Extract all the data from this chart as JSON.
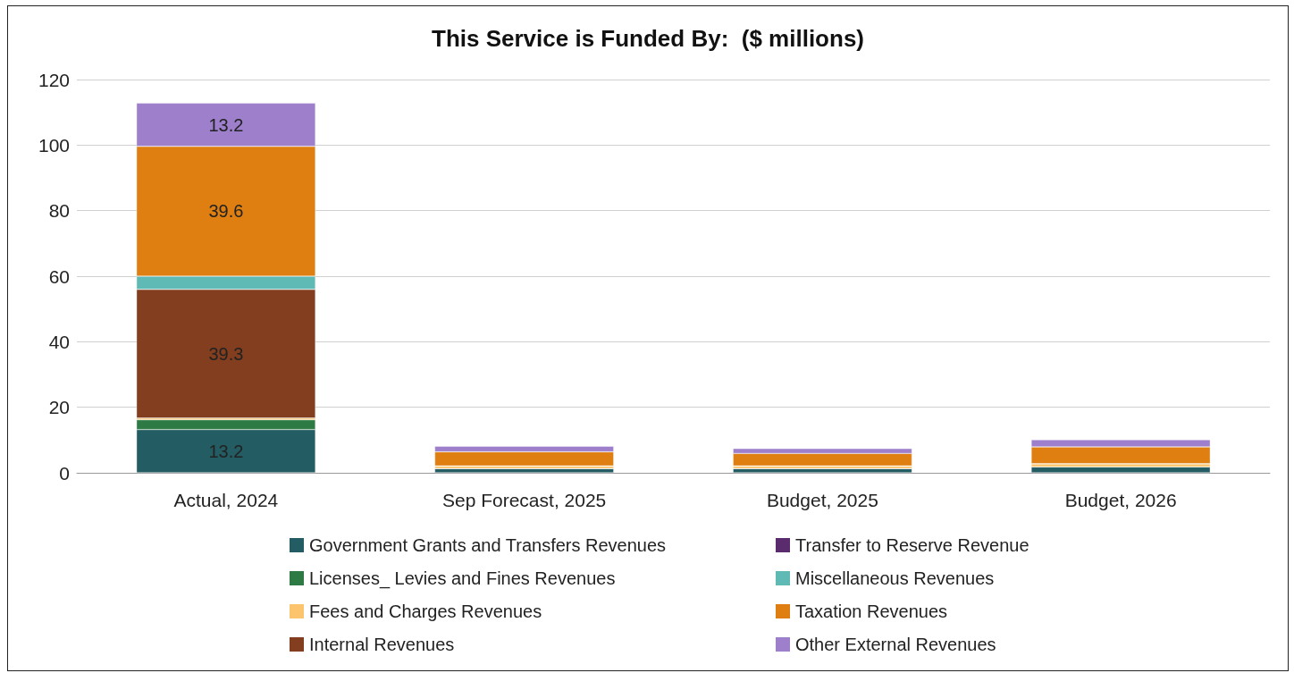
{
  "chart_data": {
    "type": "bar",
    "title": "This Service is Funded By:  ($ millions)",
    "categories": [
      "Actual, 2024",
      "Sep Forecast, 2025",
      "Budget, 2025",
      "Budget, 2026"
    ],
    "stacked": true,
    "ylim": [
      0,
      120
    ],
    "yticks": [
      0,
      20,
      40,
      60,
      80,
      100,
      120
    ],
    "grid": "y",
    "legend": "bottom",
    "series": [
      {
        "name": "Government Grants and Transfers Revenues",
        "color": "#245c63",
        "values": [
          13.2,
          1.3,
          1.3,
          1.8
        ],
        "value_labels": [
          "13.2",
          null,
          null,
          null
        ]
      },
      {
        "name": "Licenses_ Levies and Fines Revenues",
        "color": "#2e7a45",
        "values": [
          3.0,
          0,
          0,
          0
        ]
      },
      {
        "name": "Fees and Charges Revenues",
        "color": "#fbc46d",
        "values": [
          0.5,
          0.8,
          0.8,
          1.0
        ]
      },
      {
        "name": "Internal Revenues",
        "color": "#823e1e",
        "values": [
          39.3,
          0,
          0,
          0
        ],
        "value_labels": [
          "39.3",
          null,
          null,
          null
        ]
      },
      {
        "name": "Transfer to Reserve Revenue",
        "color": "#5a2c6e",
        "values": [
          0,
          0,
          0,
          0
        ]
      },
      {
        "name": "Miscellaneous Revenues",
        "color": "#5fbab5",
        "values": [
          4.0,
          0,
          0,
          0
        ]
      },
      {
        "name": "Taxation Revenues",
        "color": "#df7f11",
        "values": [
          39.6,
          4.3,
          3.8,
          5.1
        ],
        "value_labels": [
          "39.6",
          null,
          null,
          null
        ]
      },
      {
        "name": "Other External Revenues",
        "color": "#9d7fcb",
        "values": [
          13.2,
          1.7,
          1.5,
          2.2
        ],
        "value_labels": [
          "13.2",
          null,
          null,
          null
        ]
      }
    ]
  }
}
